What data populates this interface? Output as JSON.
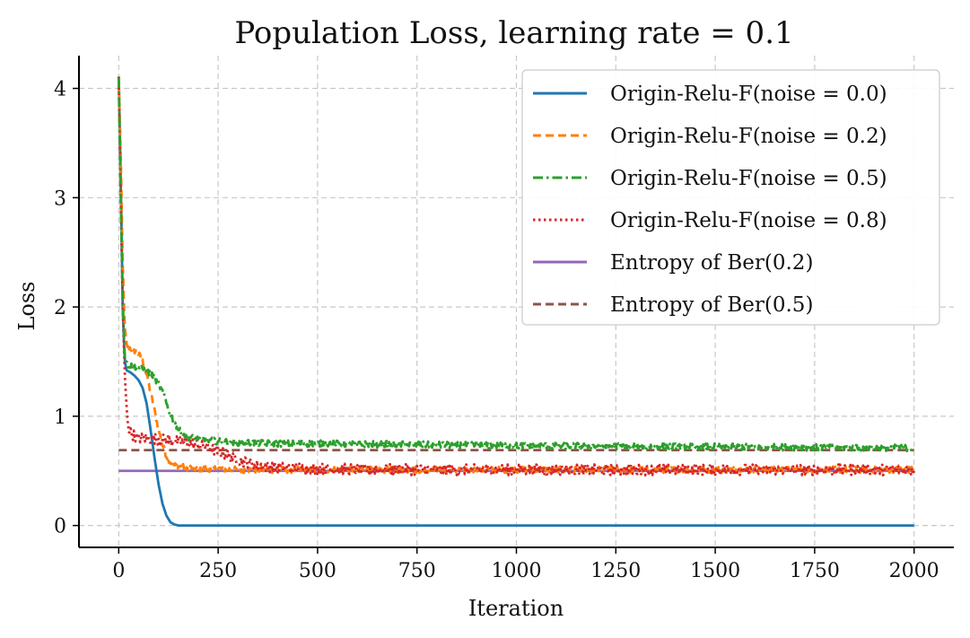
{
  "chart_data": {
    "type": "line",
    "title": "Population Loss, learning rate = 0.1",
    "xlabel": "Iteration",
    "ylabel": "Loss",
    "xlim": [
      -100,
      2100
    ],
    "ylim": [
      -0.2,
      4.3
    ],
    "xticks": [
      0,
      250,
      500,
      750,
      1000,
      1250,
      1500,
      1750,
      2000
    ],
    "xtick_labels": [
      "0",
      "250",
      "500",
      "750",
      "1000",
      "1250",
      "1500",
      "1750",
      "2000"
    ],
    "yticks": [
      0,
      1,
      2,
      3,
      4
    ],
    "ytick_labels": [
      "0",
      "1",
      "2",
      "3",
      "4"
    ],
    "grid": true,
    "legend_position": "top-right",
    "series": [
      {
        "name": "Origin-Relu-F(noise = 0.0)",
        "color": "#1f77b4",
        "style": "solid",
        "noise_amplitude": 0,
        "x": [
          0,
          5,
          10,
          15,
          20,
          30,
          40,
          50,
          60,
          70,
          80,
          90,
          100,
          110,
          120,
          130,
          140,
          150,
          170,
          200,
          300,
          500,
          1000,
          1500,
          2000
        ],
        "y": [
          4.1,
          3.2,
          2.0,
          1.5,
          1.42,
          1.4,
          1.37,
          1.33,
          1.26,
          1.12,
          0.88,
          0.62,
          0.38,
          0.2,
          0.09,
          0.03,
          0.01,
          0.0,
          0.0,
          0.0,
          0.0,
          0.0,
          0.0,
          0.0,
          0.0
        ]
      },
      {
        "name": "Origin-Relu-F(noise = 0.2)",
        "color": "#ff7f0e",
        "style": "dashed",
        "noise_amplitude": 0.03,
        "x": [
          0,
          5,
          10,
          15,
          20,
          30,
          40,
          50,
          60,
          70,
          80,
          90,
          100,
          110,
          120,
          130,
          140,
          150,
          175,
          200,
          250,
          300,
          400,
          500,
          1000,
          1500,
          2000
        ],
        "y": [
          4.1,
          3.4,
          2.4,
          1.8,
          1.65,
          1.62,
          1.6,
          1.57,
          1.5,
          1.38,
          1.22,
          1.05,
          0.88,
          0.74,
          0.64,
          0.58,
          0.55,
          0.54,
          0.53,
          0.52,
          0.52,
          0.51,
          0.51,
          0.51,
          0.51,
          0.51,
          0.51
        ]
      },
      {
        "name": "Origin-Relu-F(noise = 0.5)",
        "color": "#2ca02c",
        "style": "dashdot",
        "noise_amplitude": 0.03,
        "x": [
          0,
          5,
          10,
          15,
          20,
          30,
          50,
          70,
          90,
          100,
          110,
          120,
          130,
          140,
          150,
          160,
          175,
          200,
          250,
          300,
          400,
          500,
          750,
          1000,
          1500,
          2000
        ],
        "y": [
          4.1,
          3.0,
          2.1,
          1.55,
          1.48,
          1.46,
          1.45,
          1.42,
          1.35,
          1.3,
          1.22,
          1.12,
          1.02,
          0.94,
          0.88,
          0.84,
          0.81,
          0.79,
          0.77,
          0.76,
          0.75,
          0.75,
          0.74,
          0.73,
          0.72,
          0.71
        ]
      },
      {
        "name": "Origin-Relu-F(noise = 0.8)",
        "color": "#d62728",
        "style": "dotted",
        "noise_amplitude": 0.05,
        "x": [
          0,
          5,
          10,
          15,
          20,
          25,
          30,
          40,
          50,
          75,
          100,
          150,
          200,
          250,
          300,
          350,
          400,
          500,
          750,
          1000,
          1500,
          2000
        ],
        "y": [
          4.1,
          3.0,
          2.0,
          1.4,
          1.05,
          0.9,
          0.85,
          0.82,
          0.8,
          0.8,
          0.79,
          0.77,
          0.74,
          0.68,
          0.6,
          0.55,
          0.53,
          0.52,
          0.51,
          0.51,
          0.51,
          0.51
        ]
      },
      {
        "name": "Entropy of Ber(0.2)",
        "color": "#9467bd",
        "style": "solid",
        "noise_amplitude": 0,
        "x": [
          0,
          2000
        ],
        "y": [
          0.5,
          0.5
        ]
      },
      {
        "name": "Entropy of Ber(0.5)",
        "color": "#8c564b",
        "style": "dashed",
        "noise_amplitude": 0,
        "x": [
          0,
          2000
        ],
        "y": [
          0.69,
          0.69
        ]
      }
    ]
  }
}
